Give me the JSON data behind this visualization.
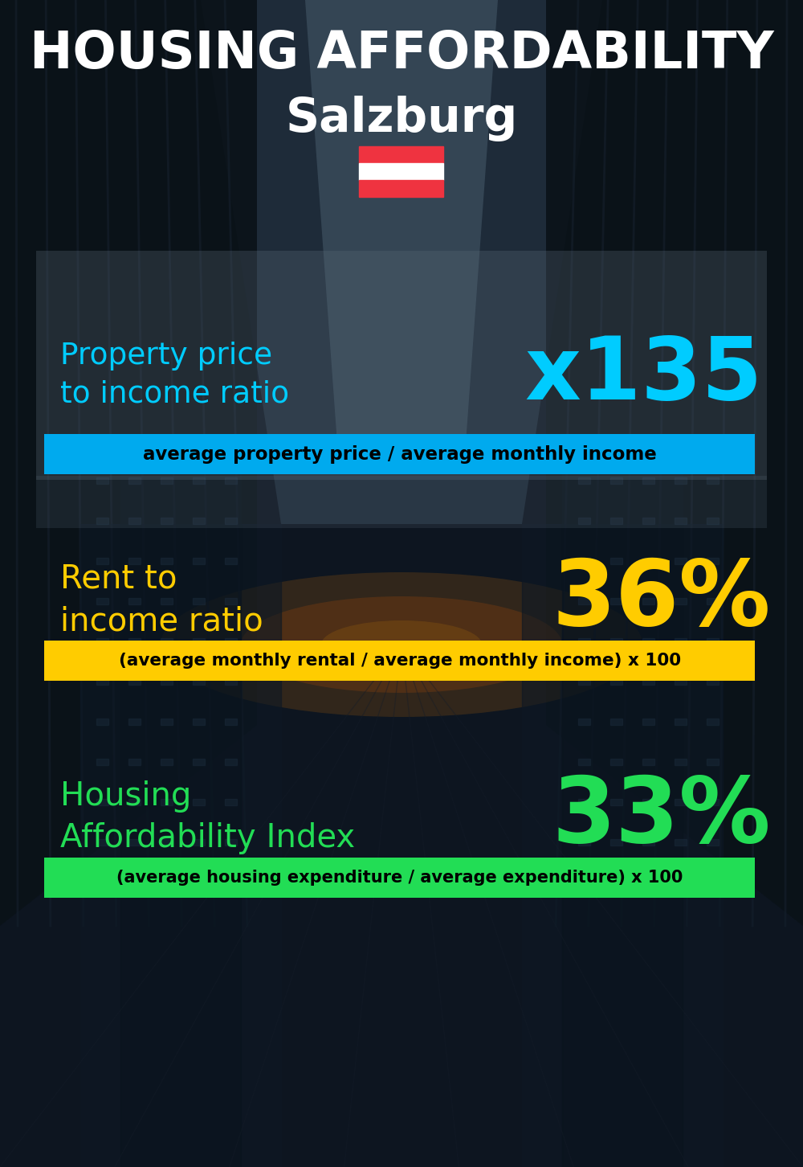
{
  "title_line1": "HOUSING AFFORDABILITY",
  "title_line2": "Salzburg",
  "bg_color": "#0a1018",
  "title_color": "#ffffff",
  "title2_color": "#ffffff",
  "section1_label": "Property price\nto income ratio",
  "section1_value": "x135",
  "section1_label_color": "#00ccff",
  "section1_value_color": "#00ccff",
  "section1_subtext": "average property price / average monthly income",
  "section1_subtext_bg": "#00aaee",
  "section1_subtext_color": "#000000",
  "section1_overlay_color": "#4a5a6a",
  "section2_label": "Rent to\nincome ratio",
  "section2_value": "36%",
  "section2_label_color": "#ffcc00",
  "section2_value_color": "#ffcc00",
  "section2_subtext": "(average monthly rental / average monthly income) x 100",
  "section2_subtext_bg": "#ffcc00",
  "section2_subtext_color": "#000000",
  "section3_label": "Housing\nAffordability Index",
  "section3_value": "33%",
  "section3_label_color": "#22dd55",
  "section3_value_color": "#22dd55",
  "section3_subtext": "(average housing expenditure / average expenditure) x 100",
  "section3_subtext_bg": "#22dd55",
  "section3_subtext_color": "#000000",
  "flag_red": "#ef3340",
  "flag_white": "#ffffff"
}
